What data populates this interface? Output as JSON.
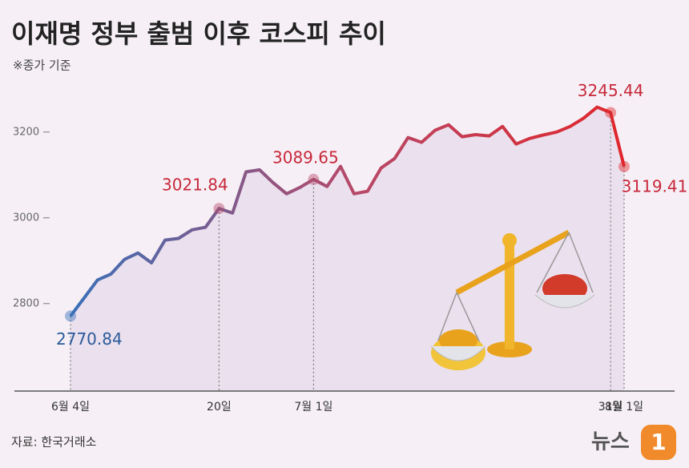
{
  "chart_data": {
    "type": "line",
    "title": "이재명 정부 출범 이후 코스피 추이",
    "subtitle": "※종가 기준",
    "source": "자료: 한국거래소",
    "credit_text": "뉴스",
    "credit_badge": "1",
    "categories": [
      "6월 4일",
      null,
      null,
      null,
      null,
      null,
      null,
      null,
      null,
      null,
      null,
      "20일",
      null,
      null,
      null,
      null,
      null,
      null,
      "7월 1일",
      null,
      null,
      null,
      null,
      null,
      null,
      null,
      null,
      null,
      null,
      null,
      null,
      null,
      null,
      null,
      null,
      null,
      null,
      null,
      null,
      null,
      "31일",
      "8월 1일"
    ],
    "series": [
      {
        "name": "코스피",
        "colors": [
          "#3a70b8",
          "#b54a6a",
          "#e0262c"
        ],
        "values": [
          2770.84,
          2813,
          2855,
          2869,
          2903,
          2918,
          2895,
          2948,
          2952,
          2972,
          2978,
          3021.84,
          3011,
          3107,
          3112,
          3082,
          3056,
          3071,
          3089.65,
          3073,
          3120,
          3056,
          3062,
          3116,
          3138,
          3187,
          3176,
          3204,
          3217,
          3189,
          3194,
          3191,
          3213,
          3172,
          3185,
          3193,
          3200,
          3213,
          3232,
          3258,
          3245.44,
          3119.41
        ]
      }
    ],
    "ylim": [
      2596,
      3321
    ],
    "yticks": [
      2800,
      3000,
      3200
    ],
    "area_color": "#ebe0ee",
    "background": "#f6f0f6"
  }
}
